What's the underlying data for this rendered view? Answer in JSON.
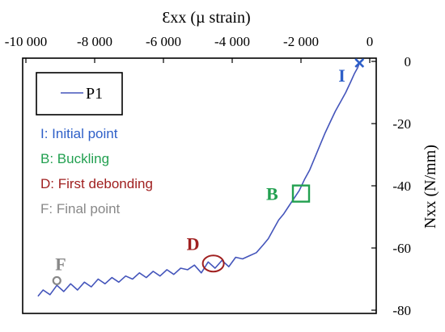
{
  "chart_data": {
    "type": "line",
    "xlabel": "Ɛxx (µ strain)",
    "ylabel": "Nxx (N/mm)",
    "xlim": [
      -10000,
      0
    ],
    "ylim": [
      -80,
      0
    ],
    "x_ticks": [
      -10000,
      -8000,
      -6000,
      -4000,
      -2000,
      0
    ],
    "x_tick_labels": [
      "-10 000",
      "-8 000",
      "-6 000",
      "-4 000",
      "-2 000",
      "0"
    ],
    "y_ticks": [
      0,
      -20,
      -40,
      -60,
      -80
    ],
    "y_tick_labels": [
      "0",
      "-20",
      "-40",
      "-60",
      "-80"
    ],
    "x_axis_position": "top",
    "y_axis_position": "right",
    "grid": false,
    "legend_position": "top-left",
    "series": [
      {
        "name": "P1",
        "color": "#4455bb",
        "x": [
          -9650,
          -9500,
          -9300,
          -9100,
          -8900,
          -8700,
          -8500,
          -8300,
          -8100,
          -7900,
          -7700,
          -7500,
          -7300,
          -7100,
          -6900,
          -6700,
          -6500,
          -6300,
          -6100,
          -5900,
          -5700,
          -5500,
          -5300,
          -5100,
          -4900,
          -4700,
          -4500,
          -4300,
          -4100,
          -3900,
          -3700,
          -3500,
          -3300,
          -3100,
          -2950,
          -2800,
          -2650,
          -2500,
          -2350,
          -2200,
          -2050,
          -1900,
          -1750,
          -1600,
          -1450,
          -1300,
          -1150,
          -1000,
          -850,
          -700,
          -550,
          -450,
          -350,
          -300
        ],
        "y": [
          -75.5,
          -73.5,
          -75,
          -72,
          -74,
          -71.5,
          -73.5,
          -71,
          -72.5,
          -70,
          -71.5,
          -69.5,
          -71,
          -69,
          -70,
          -68,
          -69.5,
          -67.5,
          -69,
          -67,
          -68.5,
          -66.5,
          -67,
          -65.5,
          -68,
          -64.5,
          -66.5,
          -64,
          -66,
          -63,
          -63.5,
          -62.5,
          -61.5,
          -59,
          -57,
          -54,
          -51,
          -49,
          -46.5,
          -44,
          -41.5,
          -38,
          -35,
          -31,
          -27,
          -23,
          -19.5,
          -16,
          -13,
          -10,
          -6.5,
          -4,
          -2,
          -0.5
        ]
      }
    ],
    "annotations": [
      {
        "letter": "I",
        "text": "I: Initial point",
        "color": "#2e5fc8",
        "marker": "x",
        "x": -300,
        "y": -0.5
      },
      {
        "letter": "B",
        "text": "B: Buckling",
        "color": "#22a050",
        "marker": "square",
        "x": -2000,
        "y": -42.5
      },
      {
        "letter": "D",
        "text": "D: First debonding",
        "color": "#a02020",
        "marker": "ellipse",
        "x": -4550,
        "y": -65
      },
      {
        "letter": "F",
        "text": "F: Final point",
        "color": "#888888",
        "marker": "circle",
        "x": -9100,
        "y": -70.5
      }
    ]
  }
}
